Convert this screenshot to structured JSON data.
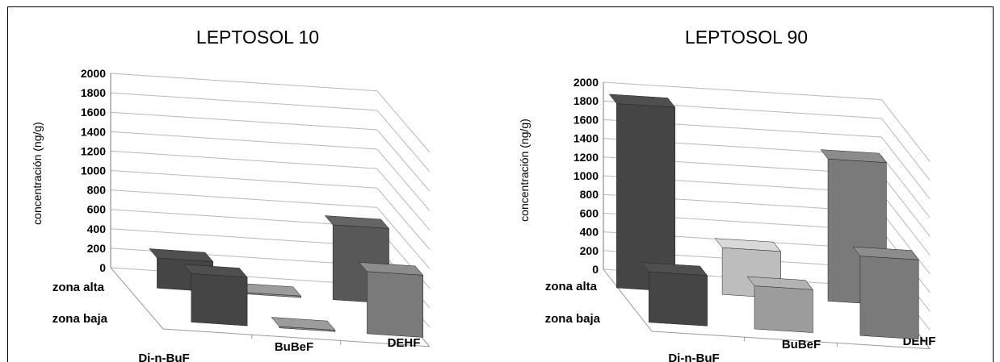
{
  "chart_data": [
    {
      "type": "bar",
      "title": "LEPTOSOL 10",
      "ylabel": "concentración (ng/g)",
      "ylim": [
        0,
        2000
      ],
      "yticks": [
        "0",
        "200",
        "400",
        "600",
        "800",
        "1000",
        "1200",
        "1400",
        "1600",
        "1800",
        "2000"
      ],
      "categories": [
        "Di-n-BuF",
        "BuBeF",
        "DEHF"
      ],
      "series": [
        {
          "name": "zona alta",
          "values": [
            310,
            15,
            770
          ],
          "colors": [
            "#454545",
            "#888888",
            "#585858"
          ]
        },
        {
          "name": "zona baja",
          "values": [
            500,
            15,
            640
          ],
          "colors": [
            "#454545",
            "#888888",
            "#7a7a7a"
          ]
        }
      ]
    },
    {
      "type": "bar",
      "title": "LEPTOSOL 90",
      "ylabel": "concentración (ng/g)",
      "ylim": [
        0,
        2000
      ],
      "yticks": [
        "0",
        "200",
        "400",
        "600",
        "800",
        "1000",
        "1200",
        "1400",
        "1600",
        "1800",
        "2000"
      ],
      "categories": [
        "Di-n-BuF",
        "BuBeF",
        "DEHF"
      ],
      "series": [
        {
          "name": "zona alta",
          "values": [
            1970,
            500,
            1520
          ],
          "colors": [
            "#454545",
            "#bdbdbd",
            "#7a7a7a"
          ]
        },
        {
          "name": "zona baja",
          "values": [
            540,
            460,
            850
          ],
          "colors": [
            "#454545",
            "#9c9c9c",
            "#7a7a7a"
          ]
        }
      ]
    }
  ]
}
